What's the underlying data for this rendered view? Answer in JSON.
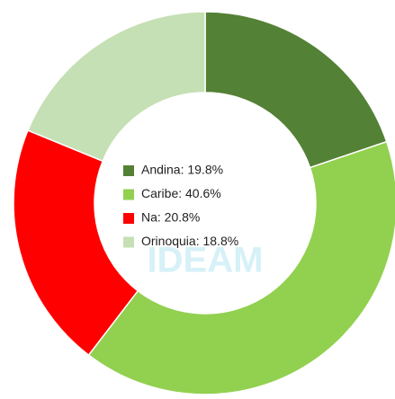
{
  "chart_data": {
    "type": "donut",
    "values": [
      19.8,
      40.6,
      20.8,
      18.8
    ],
    "value_labels": [
      "Andina: 19.8%",
      "Caribe: 40.6%",
      "Na: 20.8%",
      "Orinoquia: 18.8%"
    ],
    "colors": [
      "#538135",
      "#92d050",
      "#ff0000",
      "#c5e0b4"
    ],
    "watermark": "IDEAM",
    "legend": "center"
  }
}
